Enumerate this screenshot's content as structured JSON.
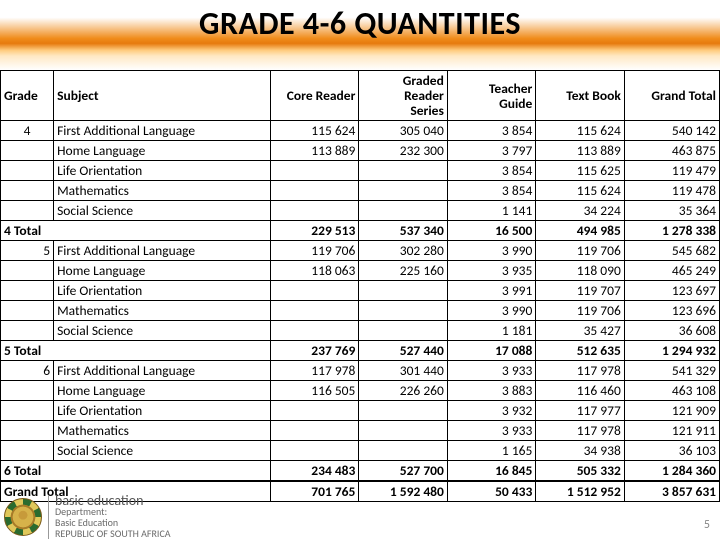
{
  "title": "GRADE 4-6 QUANTITIES",
  "columns": [
    "Grade",
    "Subject",
    "Core Reader",
    "Graded Reader Series",
    "Teacher Guide",
    "Text Book",
    "Grand Total"
  ],
  "rows": [
    {
      "grade": "4",
      "subject": "First Additional Language",
      "c": "115 624",
      "g": "305 040",
      "t": "3 854",
      "x": "115 624",
      "tot": "540 142"
    },
    {
      "grade": "",
      "subject": "Home Language",
      "c": "113 889",
      "g": "232 300",
      "t": "3 797",
      "x": "113 889",
      "tot": "463 875"
    },
    {
      "grade": "",
      "subject": "Life Orientation",
      "c": "",
      "g": "",
      "t": "3 854",
      "x": "115 625",
      "tot": "119 479"
    },
    {
      "grade": "",
      "subject": "Mathematics",
      "c": "",
      "g": "",
      "t": "3 854",
      "x": "115 624",
      "tot": "119 478"
    },
    {
      "grade": "",
      "subject": "Social Science",
      "c": "",
      "g": "",
      "t": "1 141",
      "x": "34 224",
      "tot": "35 364"
    },
    {
      "subtotal": true,
      "grade": "4 Total",
      "subject": "",
      "c": "229 513",
      "g": "537 340",
      "t": "16 500",
      "x": "494 985",
      "tot": "1 278 338"
    },
    {
      "grade": "5",
      "subject": "First Additional Language",
      "c": "119 706",
      "g": "302 280",
      "t": "3 990",
      "x": "119 706",
      "tot": "545 682",
      "gradeRight": true
    },
    {
      "grade": "",
      "subject": "Home Language",
      "c": "118 063",
      "g": "225 160",
      "t": "3 935",
      "x": "118 090",
      "tot": "465 249"
    },
    {
      "grade": "",
      "subject": "Life Orientation",
      "c": "",
      "g": "",
      "t": "3 991",
      "x": "119 707",
      "tot": "123 697"
    },
    {
      "grade": "",
      "subject": "Mathematics",
      "c": "",
      "g": "",
      "t": "3 990",
      "x": "119 706",
      "tot": "123 696"
    },
    {
      "grade": "",
      "subject": "Social Science",
      "c": "",
      "g": "",
      "t": "1 181",
      "x": "35 427",
      "tot": "36 608"
    },
    {
      "subtotal": true,
      "grade": "5 Total",
      "subject": "",
      "c": "237 769",
      "g": "527 440",
      "t": "17 088",
      "x": "512 635",
      "tot": "1 294 932"
    },
    {
      "grade": "6",
      "subject": "First Additional Language",
      "c": "117 978",
      "g": "301 440",
      "t": "3 933",
      "x": "117 978",
      "tot": "541 329",
      "gradeRight": true
    },
    {
      "grade": "",
      "subject": "Home Language",
      "c": "116 505",
      "g": "226 260",
      "t": "3 883",
      "x": "116 460",
      "tot": "463 108"
    },
    {
      "grade": "",
      "subject": "Life Orientation",
      "c": "",
      "g": "",
      "t": "3 932",
      "x": "117 977",
      "tot": "121 909"
    },
    {
      "grade": "",
      "subject": "Mathematics",
      "c": "",
      "g": "",
      "t": "3 933",
      "x": "117 978",
      "tot": "121 911"
    },
    {
      "grade": "",
      "subject": "Social Science",
      "c": "",
      "g": "",
      "t": "1 165",
      "x": "34 938",
      "tot": "36 103"
    },
    {
      "subtotal": true,
      "grade": "6 Total",
      "subject": "",
      "c": "234 483",
      "g": "527 700",
      "t": "16 845",
      "x": "505 332",
      "tot": "1 284 360"
    },
    {
      "grand": true,
      "grade": "Grand Total",
      "subject": "",
      "c": "701 765",
      "g": "1 592 480",
      "t": "50 433",
      "x": "1 512 952",
      "tot": "3 857 631"
    }
  ],
  "footer": {
    "line1": "basic education",
    "line2": "Department:",
    "line3": "Basic Education",
    "line4": "REPUBLIC OF SOUTH AFRICA"
  },
  "slideNumber": "5"
}
